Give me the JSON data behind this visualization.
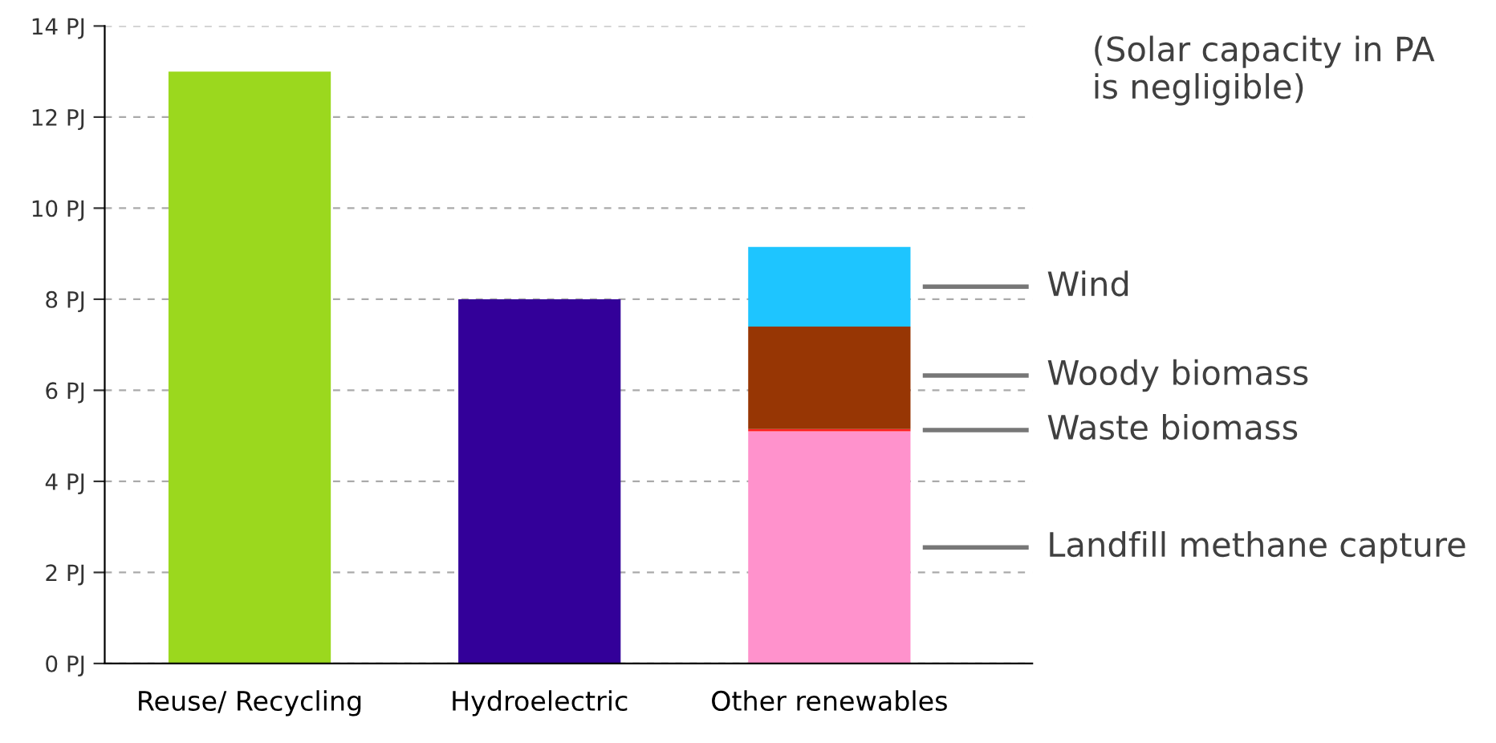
{
  "chart_data": {
    "type": "bar",
    "stacked": true,
    "categories": [
      "Reuse/ Recycling",
      "Hydroelectric",
      "Other renewables"
    ],
    "series": [
      {
        "name": "Landfill methane capture",
        "colors": [
          "#9bd81e",
          "#330099",
          "#ff92cc"
        ],
        "values": [
          13,
          8,
          5.1
        ]
      },
      {
        "name": "Waste biomass",
        "color": "#ff2020",
        "values": [
          null,
          null,
          0.05
        ]
      },
      {
        "name": "Woody biomass",
        "color": "#973604",
        "values": [
          null,
          null,
          2.25
        ]
      },
      {
        "name": "Wind",
        "color": "#1ec5ff",
        "values": [
          null,
          null,
          1.75
        ]
      }
    ],
    "ylim": [
      0,
      14
    ],
    "yticks": [
      {
        "value": 0,
        "label": "0 PJ"
      },
      {
        "value": 2,
        "label": "2 PJ"
      },
      {
        "value": 4,
        "label": "4 PJ"
      },
      {
        "value": 6,
        "label": "6 PJ"
      },
      {
        "value": 8,
        "label": "8 PJ"
      },
      {
        "value": 10,
        "label": "10 PJ"
      },
      {
        "value": 12,
        "label": "12 PJ"
      },
      {
        "value": 14,
        "label": "14 PJ"
      }
    ],
    "grid": "y",
    "legend": false,
    "annotations": [
      "(Solar capacity in PA\nis negligible)"
    ]
  }
}
